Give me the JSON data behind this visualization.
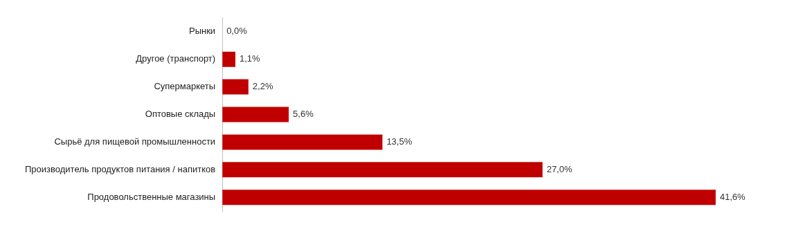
{
  "chart_data": {
    "type": "bar",
    "orientation": "horizontal",
    "categories": [
      "Рынки",
      "Другое (транспорт)",
      "Супермаркеты",
      "Оптовые склады",
      "Сырьё для пищевой промышленности",
      "Производитель продуктов питания / напитков",
      "Продовольственные магазины"
    ],
    "values": [
      0.0,
      1.1,
      2.2,
      5.6,
      13.5,
      27.0,
      41.6
    ],
    "value_labels": [
      "0,0%",
      "1,1%",
      "2,2%",
      "5,6%",
      "13,5%",
      "27,0%",
      "41,6%"
    ],
    "color": "#c00000"
  }
}
